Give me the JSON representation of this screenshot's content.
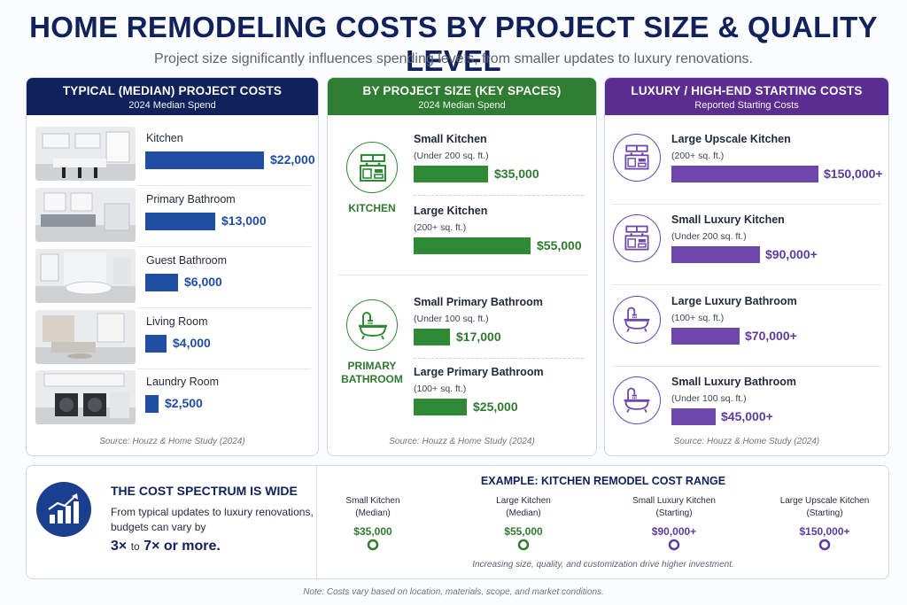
{
  "header": {
    "title": "HOME REMODELING COSTS BY PROJECT SIZE & QUALITY LEVEL",
    "subtitle": "Project size significantly influences spending levels, from smaller updates to luxury renovations."
  },
  "colors": {
    "navy": "#10215c",
    "blue": "#1f4ea3",
    "green": "#2f8a36",
    "purple": "#6f46a9"
  },
  "chart_data": [
    {
      "type": "bar",
      "title": "TYPICAL (MEDIAN) PROJECT COSTS",
      "subtitle": "2024 Median Spend",
      "categories": [
        "Kitchen",
        "Primary Bathroom",
        "Guest Bathroom",
        "Living Room",
        "Laundry Room"
      ],
      "values": [
        22000,
        13000,
        6000,
        4000,
        2500
      ],
      "labels": [
        "$22,000",
        "$13,000",
        "$6,000",
        "$4,000",
        "$2,500"
      ],
      "source": "Source: Houzz & Home Study (2024)"
    },
    {
      "type": "bar",
      "title": "BY PROJECT SIZE (KEY SPACES)",
      "subtitle": "2024 Median Spend",
      "groups": [
        {
          "label": [
            "KITCHEN"
          ],
          "icon": "kitchen-icon"
        },
        {
          "label": [
            "PRIMARY",
            "BATHROOM"
          ],
          "icon": "bathtub-icon"
        }
      ],
      "items": [
        {
          "name": "Small Kitchen",
          "sub": "(Under 200 sq. ft.)",
          "value": 35000,
          "label": "$35,000"
        },
        {
          "name": "Large Kitchen",
          "sub": "(200+ sq. ft.)",
          "value": 55000,
          "label": "$55,000"
        },
        {
          "name": "Small Primary Bathroom",
          "sub": "(Under 100 sq. ft.)",
          "value": 17000,
          "label": "$17,000"
        },
        {
          "name": "Large Primary Bathroom",
          "sub": "(100+ sq. ft.)",
          "value": 25000,
          "label": "$25,000"
        }
      ],
      "source": "Source: Houzz & Home Study (2024)"
    },
    {
      "type": "bar",
      "title": "LUXURY / HIGH-END STARTING COSTS",
      "subtitle": "Reported Starting Costs",
      "items": [
        {
          "name": "Large Upscale Kitchen",
          "sub": "(200+ sq. ft.)",
          "value": 150000,
          "label": "$150,000+",
          "icon": "kitchen-icon"
        },
        {
          "name": "Small Luxury Kitchen",
          "sub": "(Under 200 sq. ft.)",
          "value": 90000,
          "label": "$90,000+",
          "icon": "kitchen-icon"
        },
        {
          "name": "Large Luxury Bathroom",
          "sub": "(100+ sq. ft.)",
          "value": 70000,
          "label": "$70,000+",
          "icon": "bathtub-icon"
        },
        {
          "name": "Small Luxury Bathroom",
          "sub": "(Under 100 sq. ft.)",
          "value": 45000,
          "label": "$45,000+",
          "icon": "bathtub-icon"
        }
      ],
      "source": "Source: Houzz & Home Study (2024)"
    },
    {
      "type": "line",
      "title": "EXAMPLE: KITCHEN REMODEL COST RANGE",
      "points": [
        {
          "label": [
            "Small Kitchen",
            "(Median)"
          ],
          "value": 35000,
          "value_label": "$35,000"
        },
        {
          "label": [
            "Large Kitchen",
            "(Median)"
          ],
          "value": 55000,
          "value_label": "$55,000"
        },
        {
          "label": [
            "Small Luxury Kitchen",
            "(Starting)"
          ],
          "value": 90000,
          "value_label": "$90,000+"
        },
        {
          "label": [
            "Large Upscale Kitchen",
            "(Starting)"
          ],
          "value": 150000,
          "value_label": "$150,000+"
        }
      ],
      "note": "Increasing size, quality, and customization drive higher investment."
    }
  ],
  "spectrum": {
    "title": "THE COST SPECTRUM IS WIDE",
    "body": "From typical updates to luxury renovations, budgets can vary by",
    "low": "3×",
    "to": "to",
    "high": "7× or more.",
    "icon": "growth-chart-icon"
  },
  "footer_note": "Note: Costs vary based on location, materials, scope, and market conditions."
}
